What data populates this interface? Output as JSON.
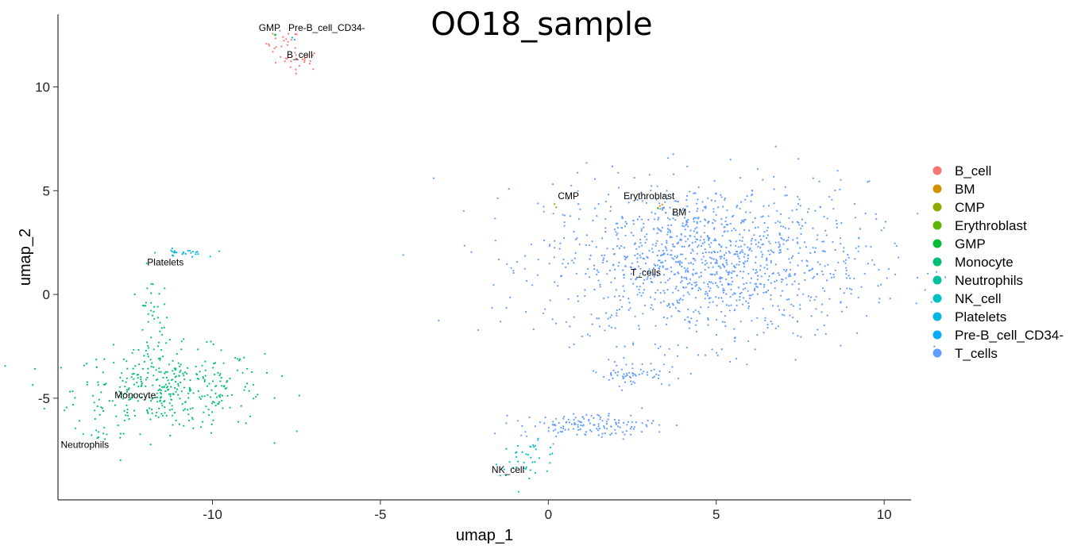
{
  "chart_data": {
    "type": "scatter",
    "title": "OO18_sample",
    "xlabel": "umap_1",
    "ylabel": "umap_2",
    "xlim": [
      -14.6,
      10.8
    ],
    "ylim": [
      -9.9,
      13.5
    ],
    "x_ticks": [
      -10,
      -5,
      0,
      5,
      10
    ],
    "y_ticks": [
      -5,
      0,
      5,
      10
    ],
    "x_tick_labels": [
      "-10",
      "-5",
      "0",
      "5",
      "10"
    ],
    "y_tick_labels": [
      "-5",
      "0",
      "5",
      "10"
    ],
    "grid": false,
    "legend_position": "right",
    "series": [
      {
        "name": "B_cell",
        "color": "#F8766D",
        "clusters": [
          {
            "center": [
              -7.4,
              11.3
            ],
            "spread": [
              0.35,
              0.25
            ],
            "count": 25
          },
          {
            "center": [
              -7.9,
              12.1
            ],
            "spread": [
              0.25,
              0.3
            ],
            "count": 20
          }
        ]
      },
      {
        "name": "BM",
        "color": "#D39200",
        "clusters": [
          {
            "center": [
              3.4,
              4.3
            ],
            "spread": [
              0.05,
              0.05
            ],
            "count": 2
          }
        ]
      },
      {
        "name": "CMP",
        "color": "#93AA00",
        "clusters": [
          {
            "center": [
              0.2,
              4.3
            ],
            "spread": [
              0.05,
              0.05
            ],
            "count": 2
          }
        ]
      },
      {
        "name": "Erythroblast",
        "color": "#5EB300",
        "clusters": [
          {
            "center": [
              3.3,
              4.2
            ],
            "spread": [
              0.05,
              0.05
            ],
            "count": 2
          }
        ]
      },
      {
        "name": "GMP",
        "color": "#00BA38",
        "clusters": [
          {
            "center": [
              -8.1,
              12.5
            ],
            "spread": [
              0.05,
              0.05
            ],
            "count": 2
          }
        ]
      },
      {
        "name": "Monocyte",
        "color": "#00BF74",
        "clusters": [
          {
            "center": [
              -11.8,
              -1.5
            ],
            "spread": [
              0.25,
              1.2
            ],
            "count": 40
          },
          {
            "center": [
              -11.3,
              -4.6
            ],
            "spread": [
              1.4,
              1.0
            ],
            "count": 380
          }
        ]
      },
      {
        "name": "Neutrophils",
        "color": "#00C19F",
        "clusters": [
          {
            "center": [
              -13.4,
              -6.7
            ],
            "spread": [
              0.2,
              0.15
            ],
            "count": 10
          }
        ]
      },
      {
        "name": "NK_cell",
        "color": "#00BFC4",
        "clusters": [
          {
            "center": [
              -0.6,
              -7.9
            ],
            "spread": [
              0.5,
              0.4
            ],
            "count": 40
          }
        ]
      },
      {
        "name": "Platelets",
        "color": "#00B9E3",
        "clusters": [
          {
            "center": [
              -10.9,
              2.0
            ],
            "spread": [
              0.35,
              0.1
            ],
            "count": 25
          }
        ]
      },
      {
        "name": "Pre-B_cell_CD34-",
        "color": "#00ADFA",
        "clusters": [
          {
            "center": [
              -7.6,
              12.3
            ],
            "spread": [
              0.05,
              0.05
            ],
            "count": 2
          }
        ]
      },
      {
        "name": "T_cells",
        "color": "#619CFF",
        "clusters": [
          {
            "center": [
              4.7,
              1.6
            ],
            "spread": [
              2.4,
              1.9
            ],
            "count": 1300
          },
          {
            "center": [
              2.5,
              -3.8
            ],
            "spread": [
              0.5,
              0.3
            ],
            "count": 60
          },
          {
            "center": [
              1.2,
              -6.3
            ],
            "spread": [
              1.0,
              0.3
            ],
            "count": 140
          }
        ]
      }
    ],
    "annotations": [
      {
        "text": "GMP",
        "x": -8.3,
        "y": 12.7
      },
      {
        "text": "Pre-B_cell_CD34-",
        "x": -6.6,
        "y": 12.7
      },
      {
        "text": "B_cell",
        "x": -7.4,
        "y": 11.4
      },
      {
        "text": "Platelets",
        "x": -11.4,
        "y": 1.4
      },
      {
        "text": "Monocyte",
        "x": -12.3,
        "y": -5.0
      },
      {
        "text": "Neutrophils",
        "x": -13.8,
        "y": -7.4
      },
      {
        "text": "NK_cell",
        "x": -1.2,
        "y": -8.6
      },
      {
        "text": "CMP",
        "x": 0.6,
        "y": 4.6
      },
      {
        "text": "Erythroblast",
        "x": 3.0,
        "y": 4.6
      },
      {
        "text": "BM",
        "x": 3.9,
        "y": 3.8
      },
      {
        "text": "T_cells",
        "x": 2.9,
        "y": 0.9
      }
    ]
  }
}
